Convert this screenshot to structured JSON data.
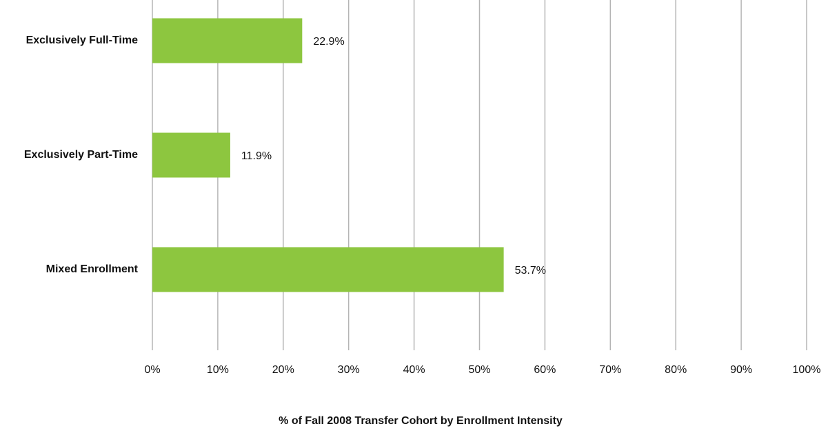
{
  "chart_data": {
    "type": "bar",
    "orientation": "horizontal",
    "x_label": "% of Fall 2008 Transfer Cohort by Enrollment Intensity",
    "categories": [
      "Exclusively Full-Time",
      "Exclusively Part-Time",
      "Mixed Enrollment"
    ],
    "values": [
      22.9,
      11.9,
      53.7
    ],
    "value_labels": [
      "22.9%",
      "11.9%",
      "53.7%"
    ],
    "color": "#8dc63f",
    "xlim": [
      0,
      100
    ],
    "xticks": [
      {
        "value": 0,
        "label": "0%"
      },
      {
        "value": 10,
        "label": "10%"
      },
      {
        "value": 20,
        "label": "20%"
      },
      {
        "value": 30,
        "label": "30%"
      },
      {
        "value": 40,
        "label": "40%"
      },
      {
        "value": 50,
        "label": "50%"
      },
      {
        "value": 60,
        "label": "60%"
      },
      {
        "value": 70,
        "label": "70%"
      },
      {
        "value": 80,
        "label": "80%"
      },
      {
        "value": 90,
        "label": "90%"
      },
      {
        "value": 100,
        "label": "100%"
      }
    ],
    "grid": true
  }
}
